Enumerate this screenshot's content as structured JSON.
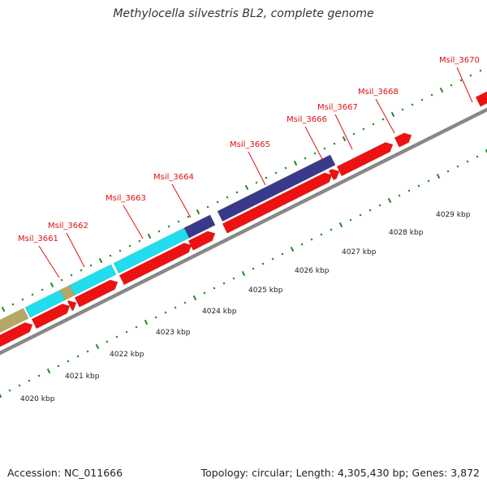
{
  "title": "Methylocella silvestris BL2, complete genome",
  "accession": "Accession: NC_011666",
  "topology": "Topology: circular; Length: 4,305,430 bp; Genes: 3,872",
  "colors": {
    "cds": "#ee1111",
    "cyan": "#22ddee",
    "navy": "#3a3a8a",
    "tan": "#b3a866",
    "backbone": "#888888",
    "ticks": "#228822",
    "label": "#e01010"
  },
  "scale_labels": [
    "4020 kbp",
    "4021 kbp",
    "4022 kbp",
    "4023 kbp",
    "4024 kbp",
    "4025 kbp",
    "4026 kbp",
    "4027 kbp",
    "4028 kbp",
    "4029 kbp"
  ],
  "gene_labels": [
    "Msil_3661",
    "Msil_3662",
    "Msil_3663",
    "Msil_3664",
    "Msil_3665",
    "Msil_3666",
    "Msil_3667",
    "Msil_3668",
    "Msil_3670"
  ]
}
